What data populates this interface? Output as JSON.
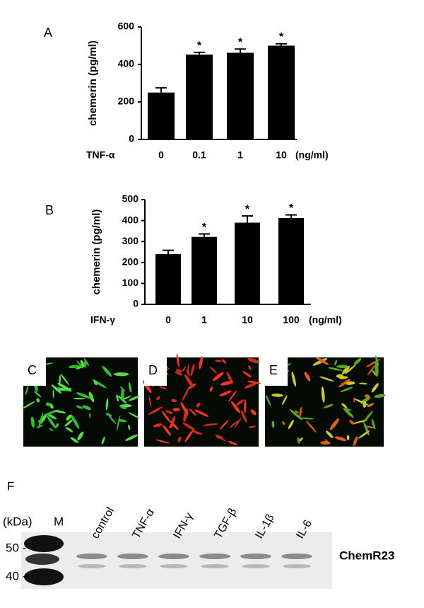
{
  "chart_data": [
    {
      "type": "bar",
      "panel": "A",
      "y_label": "chemerin (pg/ml)",
      "x_prefix": "TNF-α",
      "x_unit": "(ng/ml)",
      "categories": [
        "0",
        "0.1",
        "1",
        "10"
      ],
      "values": [
        250,
        452,
        462,
        500
      ],
      "errors": [
        25,
        12,
        20,
        10
      ],
      "annotations": [
        null,
        "*",
        "*",
        "*"
      ],
      "color": "#000000",
      "ylim": [
        0,
        600
      ],
      "yticks": [
        0,
        200,
        400,
        600
      ]
    },
    {
      "type": "bar",
      "panel": "B",
      "y_label": "chemerin (pg/ml)",
      "x_prefix": "IFN-γ",
      "x_unit": "(ng/ml)",
      "categories": [
        "0",
        "1",
        "10",
        "100"
      ],
      "values": [
        240,
        322,
        390,
        412
      ],
      "errors": [
        18,
        14,
        32,
        15
      ],
      "annotations": [
        null,
        "*",
        "*",
        "*"
      ],
      "color": "#000000",
      "ylim": [
        0,
        500
      ],
      "yticks": [
        0,
        100,
        200,
        300,
        400,
        500
      ]
    }
  ],
  "images": [
    "C",
    "D",
    "E"
  ],
  "blot": {
    "panel": "F",
    "unit": "(kDa)",
    "marker": "M",
    "mw_labels": [
      "50 -",
      "40 -"
    ],
    "lanes": [
      "control",
      "TNF-α",
      "IFN-γ",
      "TGF-β",
      "IL-1β",
      "IL-6"
    ],
    "target": "ChemR23"
  }
}
